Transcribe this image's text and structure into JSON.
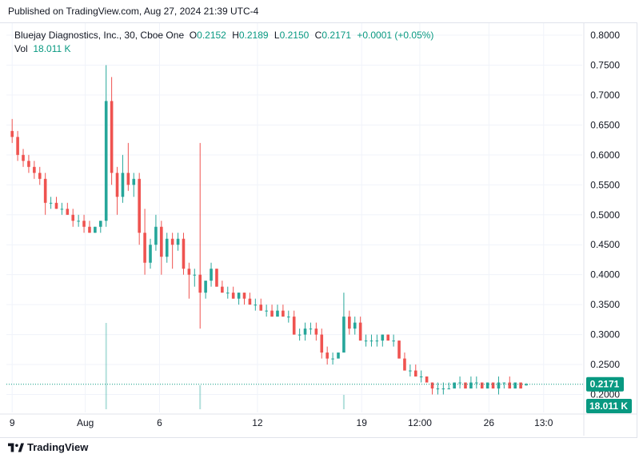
{
  "header": {
    "published": "Published on TradingView.com, Aug 27, 2024 21:39 UTC-4"
  },
  "legend": {
    "symbol": "Bluejay Diagnostics, Inc., 30, Cboe One",
    "open_label": "O",
    "open": "0.2152",
    "high_label": "H",
    "high": "0.2189",
    "low_label": "L",
    "low": "0.2150",
    "close_label": "C",
    "close": "0.2171",
    "change": "+0.0001 (+0.05%)",
    "vol_label": "Vol",
    "vol": "18.011 K"
  },
  "footer": {
    "brand": "TradingView"
  },
  "colors": {
    "up": "#26a69a",
    "down": "#ef5350",
    "price_tag": "#089981",
    "grid": "#f0f3fa"
  },
  "chart_data": {
    "type": "candlestick",
    "ylim": [
      0.17,
      0.82
    ],
    "y_ticks": [
      "0.8000",
      "0.7500",
      "0.7000",
      "0.6500",
      "0.6000",
      "0.5500",
      "0.5000",
      "0.4500",
      "0.4000",
      "0.3500",
      "0.3000",
      "0.2500",
      "0.2000"
    ],
    "x_ticks": [
      "9",
      "Aug",
      "6",
      "12",
      "19",
      "12:00",
      "26",
      "13:0"
    ],
    "x_range": [
      0,
      100
    ],
    "x_tick_positions": [
      1,
      13.7,
      26.6,
      43.6,
      61.7,
      71.8,
      83.8,
      93.3
    ],
    "current_price": "0.2171",
    "current_volume": "18.011 K",
    "bars": [
      [
        0,
        0.64,
        0.66,
        0.62,
        0.63
      ],
      [
        1,
        0.63,
        0.64,
        0.59,
        0.6
      ],
      [
        2,
        0.6,
        0.61,
        0.58,
        0.59
      ],
      [
        3,
        0.59,
        0.6,
        0.57,
        0.58
      ],
      [
        4,
        0.58,
        0.59,
        0.56,
        0.57
      ],
      [
        5,
        0.57,
        0.58,
        0.55,
        0.56
      ],
      [
        6,
        0.56,
        0.57,
        0.5,
        0.52
      ],
      [
        7,
        0.52,
        0.53,
        0.51,
        0.52
      ],
      [
        8,
        0.52,
        0.53,
        0.51,
        0.51
      ],
      [
        9,
        0.51,
        0.52,
        0.5,
        0.51
      ],
      [
        10,
        0.51,
        0.52,
        0.5,
        0.5
      ],
      [
        11,
        0.5,
        0.51,
        0.48,
        0.49
      ],
      [
        12,
        0.49,
        0.5,
        0.48,
        0.49
      ],
      [
        13,
        0.49,
        0.5,
        0.47,
        0.48
      ],
      [
        14,
        0.48,
        0.49,
        0.47,
        0.47
      ],
      [
        15,
        0.47,
        0.48,
        0.47,
        0.48
      ],
      [
        16,
        0.48,
        0.49,
        0.47,
        0.49
      ],
      [
        17,
        0.49,
        0.75,
        0.48,
        0.69
      ],
      [
        18,
        0.69,
        0.73,
        0.55,
        0.57
      ],
      [
        19,
        0.57,
        0.58,
        0.5,
        0.53
      ],
      [
        20,
        0.53,
        0.6,
        0.52,
        0.57
      ],
      [
        21,
        0.57,
        0.62,
        0.54,
        0.55
      ],
      [
        22,
        0.55,
        0.57,
        0.53,
        0.56
      ],
      [
        23,
        0.56,
        0.57,
        0.45,
        0.47
      ],
      [
        24,
        0.47,
        0.51,
        0.4,
        0.42
      ],
      [
        25,
        0.42,
        0.46,
        0.41,
        0.45
      ],
      [
        26,
        0.45,
        0.5,
        0.44,
        0.48
      ],
      [
        27,
        0.48,
        0.49,
        0.4,
        0.43
      ],
      [
        28,
        0.43,
        0.47,
        0.42,
        0.46
      ],
      [
        29,
        0.46,
        0.47,
        0.41,
        0.45
      ],
      [
        30,
        0.45,
        0.47,
        0.44,
        0.46
      ],
      [
        31,
        0.46,
        0.47,
        0.4,
        0.41
      ],
      [
        32,
        0.41,
        0.42,
        0.36,
        0.4
      ],
      [
        33,
        0.4,
        0.41,
        0.38,
        0.4
      ],
      [
        34,
        0.4,
        0.62,
        0.31,
        0.37
      ],
      [
        35,
        0.37,
        0.39,
        0.36,
        0.39
      ],
      [
        36,
        0.39,
        0.42,
        0.38,
        0.41
      ],
      [
        37,
        0.41,
        0.41,
        0.38,
        0.38
      ],
      [
        38,
        0.38,
        0.39,
        0.37,
        0.37
      ],
      [
        39,
        0.37,
        0.38,
        0.36,
        0.37
      ],
      [
        40,
        0.37,
        0.38,
        0.36,
        0.36
      ],
      [
        41,
        0.36,
        0.37,
        0.35,
        0.37
      ],
      [
        42,
        0.37,
        0.37,
        0.35,
        0.36
      ],
      [
        43,
        0.36,
        0.37,
        0.35,
        0.35
      ],
      [
        44,
        0.35,
        0.36,
        0.34,
        0.35
      ],
      [
        45,
        0.35,
        0.36,
        0.34,
        0.34
      ],
      [
        46,
        0.34,
        0.35,
        0.33,
        0.34
      ],
      [
        47,
        0.34,
        0.35,
        0.33,
        0.33
      ],
      [
        48,
        0.33,
        0.35,
        0.33,
        0.34
      ],
      [
        49,
        0.34,
        0.35,
        0.33,
        0.33
      ],
      [
        50,
        0.33,
        0.34,
        0.32,
        0.33
      ],
      [
        51,
        0.33,
        0.34,
        0.3,
        0.3
      ],
      [
        52,
        0.3,
        0.31,
        0.29,
        0.3
      ],
      [
        53,
        0.3,
        0.32,
        0.29,
        0.31
      ],
      [
        54,
        0.31,
        0.32,
        0.3,
        0.31
      ],
      [
        55,
        0.31,
        0.32,
        0.29,
        0.3
      ],
      [
        56,
        0.3,
        0.31,
        0.26,
        0.27
      ],
      [
        57,
        0.27,
        0.28,
        0.25,
        0.26
      ],
      [
        58,
        0.26,
        0.27,
        0.25,
        0.26
      ],
      [
        59,
        0.26,
        0.27,
        0.26,
        0.27
      ],
      [
        60,
        0.27,
        0.37,
        0.28,
        0.33
      ],
      [
        61,
        0.33,
        0.34,
        0.3,
        0.31
      ],
      [
        62,
        0.31,
        0.33,
        0.3,
        0.32
      ],
      [
        63,
        0.32,
        0.33,
        0.29,
        0.29
      ],
      [
        64,
        0.29,
        0.3,
        0.28,
        0.29
      ],
      [
        65,
        0.29,
        0.3,
        0.28,
        0.29
      ],
      [
        66,
        0.29,
        0.3,
        0.28,
        0.29
      ],
      [
        67,
        0.29,
        0.3,
        0.28,
        0.3
      ],
      [
        68,
        0.3,
        0.3,
        0.29,
        0.29
      ],
      [
        69,
        0.29,
        0.3,
        0.28,
        0.29
      ],
      [
        70,
        0.29,
        0.29,
        0.26,
        0.26
      ],
      [
        71,
        0.26,
        0.27,
        0.24,
        0.24
      ],
      [
        72,
        0.24,
        0.25,
        0.23,
        0.24
      ],
      [
        73,
        0.24,
        0.25,
        0.23,
        0.23
      ],
      [
        74,
        0.23,
        0.24,
        0.22,
        0.23
      ],
      [
        75,
        0.23,
        0.23,
        0.22,
        0.22
      ],
      [
        76,
        0.22,
        0.22,
        0.2,
        0.21
      ],
      [
        77,
        0.21,
        0.22,
        0.2,
        0.21
      ],
      [
        78,
        0.21,
        0.22,
        0.2,
        0.21
      ],
      [
        79,
        0.21,
        0.22,
        0.21,
        0.21
      ],
      [
        80,
        0.21,
        0.22,
        0.21,
        0.22
      ],
      [
        81,
        0.22,
        0.23,
        0.21,
        0.22
      ],
      [
        82,
        0.22,
        0.22,
        0.21,
        0.21
      ],
      [
        83,
        0.21,
        0.23,
        0.21,
        0.22
      ],
      [
        84,
        0.22,
        0.23,
        0.21,
        0.22
      ],
      [
        85,
        0.22,
        0.22,
        0.21,
        0.21
      ],
      [
        86,
        0.21,
        0.22,
        0.21,
        0.22
      ],
      [
        87,
        0.22,
        0.22,
        0.21,
        0.21
      ],
      [
        88,
        0.21,
        0.23,
        0.2,
        0.22
      ],
      [
        89,
        0.22,
        0.22,
        0.21,
        0.22
      ],
      [
        90,
        0.22,
        0.23,
        0.21,
        0.21
      ],
      [
        91,
        0.21,
        0.22,
        0.21,
        0.22
      ],
      [
        92,
        0.22,
        0.22,
        0.21,
        0.21
      ],
      [
        93,
        0.2152,
        0.2189,
        0.215,
        0.2171
      ]
    ],
    "volume_spikes": [
      [
        17,
        0.9
      ],
      [
        34,
        0.25
      ],
      [
        60,
        0.15
      ]
    ]
  }
}
